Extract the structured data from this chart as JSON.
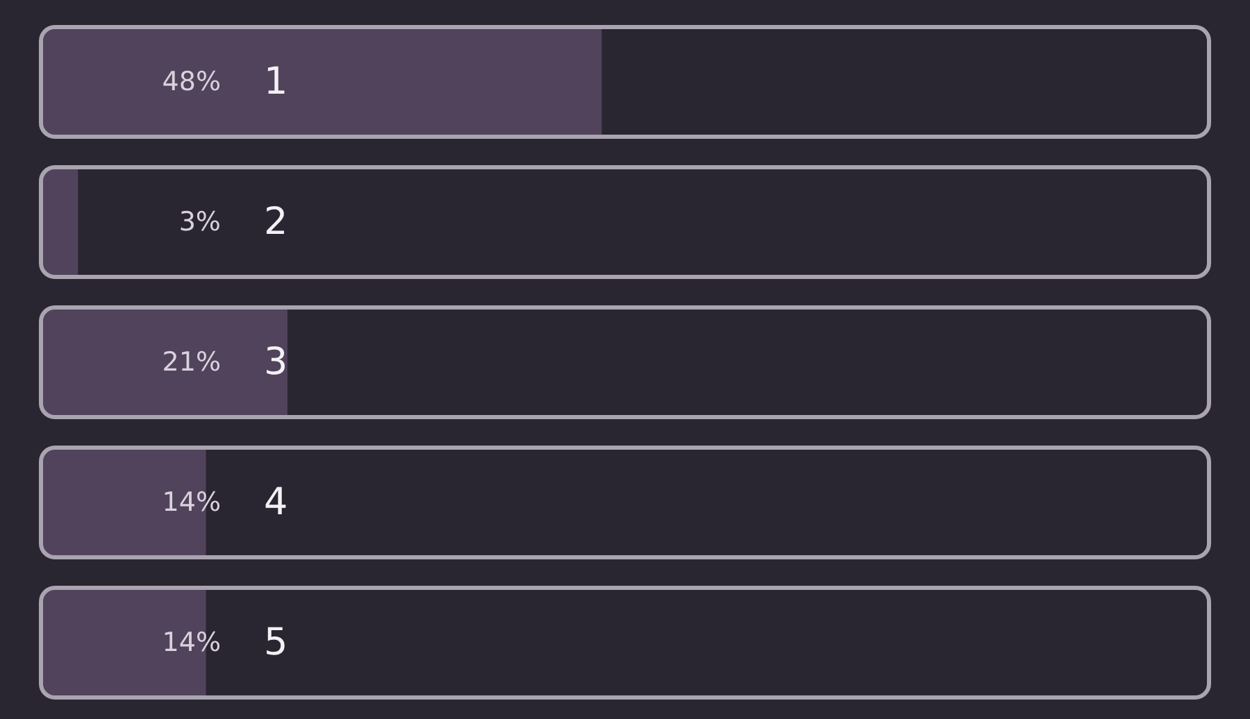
{
  "chart_data": {
    "type": "bar",
    "orientation": "horizontal",
    "categories": [
      "1",
      "2",
      "3",
      "4",
      "5"
    ],
    "values": [
      48,
      3,
      21,
      14,
      14
    ],
    "value_labels": [
      "48%",
      "3%",
      "21%",
      "14%",
      "14%"
    ],
    "color": "#51435b",
    "xlim": [
      0,
      100
    ],
    "tick_labels": "y"
  }
}
